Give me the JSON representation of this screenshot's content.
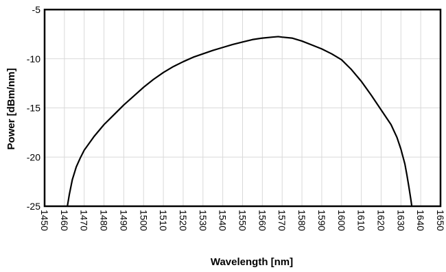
{
  "chart_data": {
    "type": "line",
    "title": "",
    "xlabel": "Wavelength [nm]",
    "ylabel": "Power [dBm/nm]",
    "xlim": [
      1450,
      1650
    ],
    "ylim": [
      -25,
      -5
    ],
    "x_ticks": [
      1450,
      1460,
      1470,
      1480,
      1490,
      1500,
      1510,
      1520,
      1530,
      1540,
      1550,
      1560,
      1570,
      1580,
      1590,
      1600,
      1610,
      1620,
      1630,
      1640,
      1650
    ],
    "x_tick_labels": [
      "1450",
      "1460",
      "1470",
      "1480",
      "1490",
      "1500",
      "1510",
      "1520",
      "1530",
      "1540",
      "1550",
      "1560",
      "1570",
      "1580",
      "1590",
      "1600",
      "1610",
      "1620",
      "1630",
      "1640",
      "1650"
    ],
    "y_ticks": [
      -25,
      -20,
      -15,
      -10,
      -5
    ],
    "y_tick_labels": [
      "-25",
      "-20",
      "-15",
      "-10",
      "-5"
    ],
    "grid": true,
    "legend": "none",
    "colors": {
      "line": "#000000",
      "grid": "#d9d9d9",
      "frame": "#000000"
    },
    "series": [
      {
        "x": [
          1461.5,
          1462.5,
          1464,
          1466,
          1468,
          1470,
          1475,
          1480,
          1485,
          1490,
          1495,
          1500,
          1505,
          1510,
          1515,
          1520,
          1525,
          1530,
          1535,
          1540,
          1545,
          1550,
          1555,
          1560,
          1565,
          1568,
          1570,
          1575,
          1580,
          1585,
          1590,
          1595,
          1600,
          1605,
          1610,
          1615,
          1620,
          1625,
          1628,
          1630,
          1632,
          1633,
          1634,
          1635,
          1635.5
        ],
        "y": [
          -25,
          -23.8,
          -22.3,
          -21,
          -20.1,
          -19.3,
          -17.9,
          -16.7,
          -15.7,
          -14.7,
          -13.8,
          -12.9,
          -12.1,
          -11.4,
          -10.8,
          -10.3,
          -9.85,
          -9.5,
          -9.15,
          -8.85,
          -8.55,
          -8.3,
          -8.05,
          -7.9,
          -7.8,
          -7.75,
          -7.8,
          -7.9,
          -8.2,
          -8.6,
          -9.0,
          -9.5,
          -10.1,
          -11.1,
          -12.3,
          -13.7,
          -15.2,
          -16.7,
          -18.0,
          -19.2,
          -20.7,
          -21.8,
          -23.0,
          -24.3,
          -25
        ]
      }
    ]
  }
}
